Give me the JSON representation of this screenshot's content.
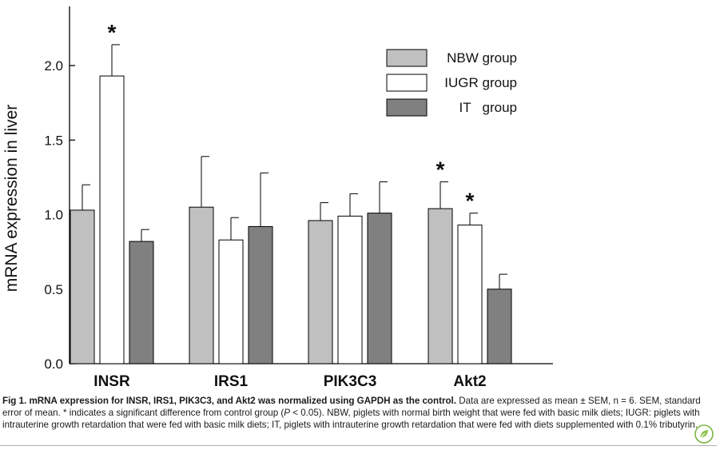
{
  "chart_data": {
    "type": "bar",
    "ylabel": "mRNA  expression  in  liver",
    "ylim": [
      0,
      2.4
    ],
    "yticks": [
      "0.0",
      "0.5",
      "1.0",
      "1.5",
      "2.0"
    ],
    "categories": [
      "INSR",
      "IRS1",
      "PIK3C3",
      "Akt2"
    ],
    "series": [
      {
        "name": "NBW group",
        "color": "#c0c0c0",
        "values": [
          1.03,
          1.05,
          0.96,
          1.04
        ],
        "errors": [
          0.17,
          0.34,
          0.12,
          0.18
        ]
      },
      {
        "name": "IUGR group",
        "color": "#ffffff",
        "values": [
          1.93,
          0.83,
          0.99,
          0.93
        ],
        "errors": [
          0.21,
          0.15,
          0.15,
          0.08
        ]
      },
      {
        "name": "IT   group",
        "color": "#808080",
        "values": [
          0.82,
          0.92,
          1.01,
          0.5
        ],
        "errors": [
          0.08,
          0.36,
          0.21,
          0.1
        ]
      }
    ],
    "annotations": [
      {
        "category": 0,
        "series": 1,
        "text": "*"
      },
      {
        "category": 3,
        "series": 0,
        "text": "*"
      },
      {
        "category": 3,
        "series": 1,
        "text": "*"
      }
    ],
    "legend": "top-right",
    "grid": false
  },
  "caption": {
    "lead": "Fig 1. mRNA expression for INSR, IRS1, PIK3C3, and Akt2 was normalized using GAPDH as the control.",
    "text1": " Data are expressed as mean ± SEM, n = 6. SEM, standard error of mean. * indicates a significant difference from control group (",
    "pvar": "P",
    "text2": " < 0.05). NBW, piglets with normal birth weight that were fed with basic milk diets; IUGR: piglets with intrauterine growth retardation that were fed with basic milk diets; IT, piglets with intrauterine growth retardation that were fed with diets supplemented with 0.1% tributyrin."
  },
  "icons": {
    "badge": "plos-leaf-icon"
  }
}
